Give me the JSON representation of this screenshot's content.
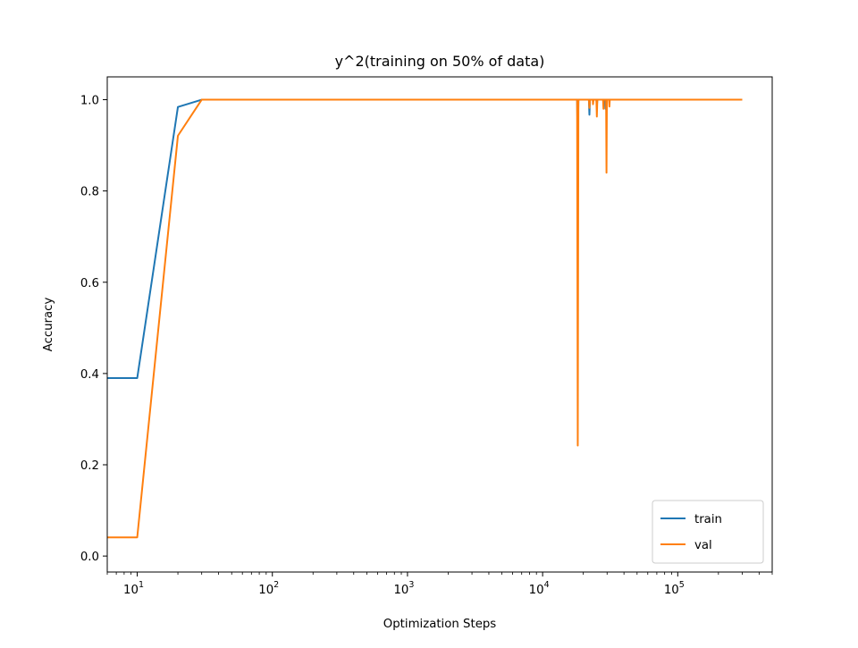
{
  "chart_data": {
    "type": "line",
    "title": "y^2(training on 50% of data)",
    "xlabel": "Optimization Steps",
    "ylabel": "Accuracy",
    "xscale": "log",
    "xlim": [
      6,
      500000
    ],
    "ylim": [
      -0.035,
      1.05
    ],
    "xticks": [
      {
        "value": 10,
        "mantissa": "10",
        "exp": "1"
      },
      {
        "value": 100,
        "mantissa": "10",
        "exp": "2"
      },
      {
        "value": 1000,
        "mantissa": "10",
        "exp": "3"
      },
      {
        "value": 10000,
        "mantissa": "10",
        "exp": "4"
      },
      {
        "value": 100000,
        "mantissa": "10",
        "exp": "5"
      }
    ],
    "yticks": [
      {
        "value": 0.0,
        "label": "0.0"
      },
      {
        "value": 0.2,
        "label": "0.2"
      },
      {
        "value": 0.4,
        "label": "0.4"
      },
      {
        "value": 0.6,
        "label": "0.6"
      },
      {
        "value": 0.8,
        "label": "0.8"
      },
      {
        "value": 1.0,
        "label": "1.0"
      }
    ],
    "legend_position": "lower-right",
    "grid": false,
    "series": [
      {
        "name": "train",
        "color": "#1f77b4",
        "points": [
          [
            1,
            0.39
          ],
          [
            10,
            0.39
          ],
          [
            20,
            0.984
          ],
          [
            30,
            1.0
          ],
          [
            18000,
            1.0
          ],
          [
            18200,
            0.9
          ],
          [
            18400,
            1.0
          ],
          [
            22000,
            1.0
          ],
          [
            22200,
            0.967
          ],
          [
            22400,
            1.0
          ],
          [
            25000,
            1.0
          ],
          [
            25200,
            0.985
          ],
          [
            25400,
            1.0
          ],
          [
            29000,
            1.0
          ],
          [
            29200,
            0.98
          ],
          [
            29400,
            1.0
          ],
          [
            300000,
            1.0
          ]
        ]
      },
      {
        "name": "val",
        "color": "#ff7f0e",
        "points": [
          [
            1,
            0.041
          ],
          [
            10,
            0.041
          ],
          [
            20,
            0.921
          ],
          [
            30,
            1.0
          ],
          [
            18000,
            1.0
          ],
          [
            18200,
            0.242
          ],
          [
            18400,
            1.0
          ],
          [
            22000,
            1.0
          ],
          [
            22200,
            0.982
          ],
          [
            22400,
            1.0
          ],
          [
            23500,
            1.0
          ],
          [
            23600,
            0.99
          ],
          [
            23800,
            1.0
          ],
          [
            25000,
            1.0
          ],
          [
            25200,
            0.963
          ],
          [
            25400,
            1.0
          ],
          [
            28000,
            1.0
          ],
          [
            28200,
            0.98
          ],
          [
            28400,
            1.0
          ],
          [
            29500,
            1.0
          ],
          [
            29700,
            0.84
          ],
          [
            29900,
            1.0
          ],
          [
            31000,
            1.0
          ],
          [
            31200,
            0.985
          ],
          [
            31400,
            1.0
          ],
          [
            300000,
            1.0
          ]
        ]
      }
    ]
  }
}
